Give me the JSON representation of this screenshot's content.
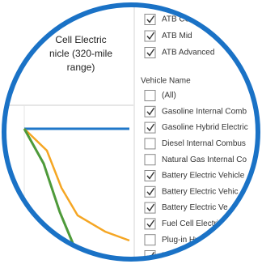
{
  "chart_panel": {
    "title_lines": [
      "Cell Electric",
      "nicle (320-mile",
      "range)"
    ]
  },
  "scenario_filter": {
    "items": [
      {
        "label": "ATB Con",
        "checked": true
      },
      {
        "label": "ATB Mid",
        "checked": true
      },
      {
        "label": "ATB Advanced",
        "checked": true
      }
    ]
  },
  "vehicle_filter": {
    "title": "Vehicle Name",
    "items": [
      {
        "label": "(All)",
        "checked": false
      },
      {
        "label": "Gasoline Internal Comb",
        "checked": true
      },
      {
        "label": "Gasoline Hybrid Electric",
        "checked": true
      },
      {
        "label": "Diesel Internal Combus",
        "checked": false
      },
      {
        "label": "Natural Gas Internal Co",
        "checked": false
      },
      {
        "label": "Battery Electric Vehicle",
        "checked": true
      },
      {
        "label": "Battery Electric Vehic",
        "checked": true
      },
      {
        "label": "Battery Electric Ve",
        "checked": true
      },
      {
        "label": "Fuel Cell Electri",
        "checked": true
      },
      {
        "label": "Plug-in Hyb",
        "checked": false
      },
      {
        "label": "Plu",
        "checked": true
      }
    ]
  }
}
